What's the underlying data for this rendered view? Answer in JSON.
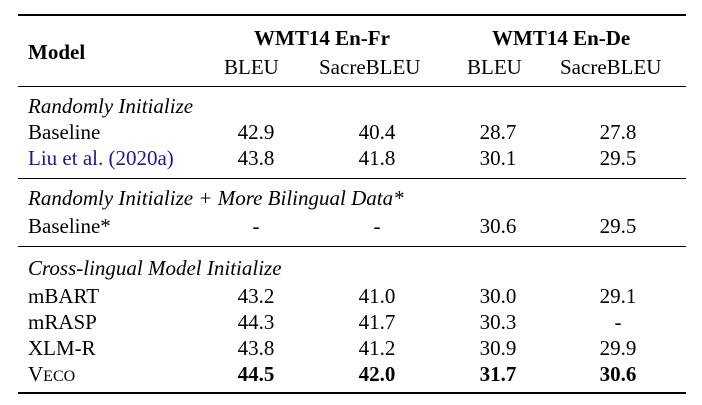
{
  "header": {
    "model": "Model",
    "group1": "WMT14 En-Fr",
    "group2": "WMT14 En-De",
    "metrics": [
      "BLEU",
      "SacreBLEU",
      "BLEU",
      "SacreBLEU"
    ]
  },
  "sections": [
    {
      "title": "Randomly Initialize",
      "rows": [
        {
          "model": "Baseline",
          "values": [
            "42.9",
            "40.4",
            "28.7",
            "27.8"
          ]
        },
        {
          "model": "Liu et al. (2020a)",
          "values": [
            "43.8",
            "41.8",
            "30.1",
            "29.5"
          ]
        }
      ]
    },
    {
      "title": "Randomly Initialize + More Bilingual Data*",
      "rows": [
        {
          "model": "Baseline*",
          "values": [
            "-",
            "-",
            "30.6",
            "29.5"
          ]
        }
      ]
    },
    {
      "title": "Cross-lingual Model Initialize",
      "rows": [
        {
          "model": "mBART",
          "values": [
            "43.2",
            "41.0",
            "30.0",
            "29.1"
          ]
        },
        {
          "model": "mRASP",
          "values": [
            "44.3",
            "41.7",
            "30.3",
            "-"
          ]
        },
        {
          "model": "XLM-R",
          "values": [
            "43.8",
            "41.2",
            "30.9",
            "29.9"
          ]
        },
        {
          "model": "VECO",
          "values": [
            "44.5",
            "42.0",
            "31.7",
            "30.6"
          ]
        }
      ]
    }
  ]
}
